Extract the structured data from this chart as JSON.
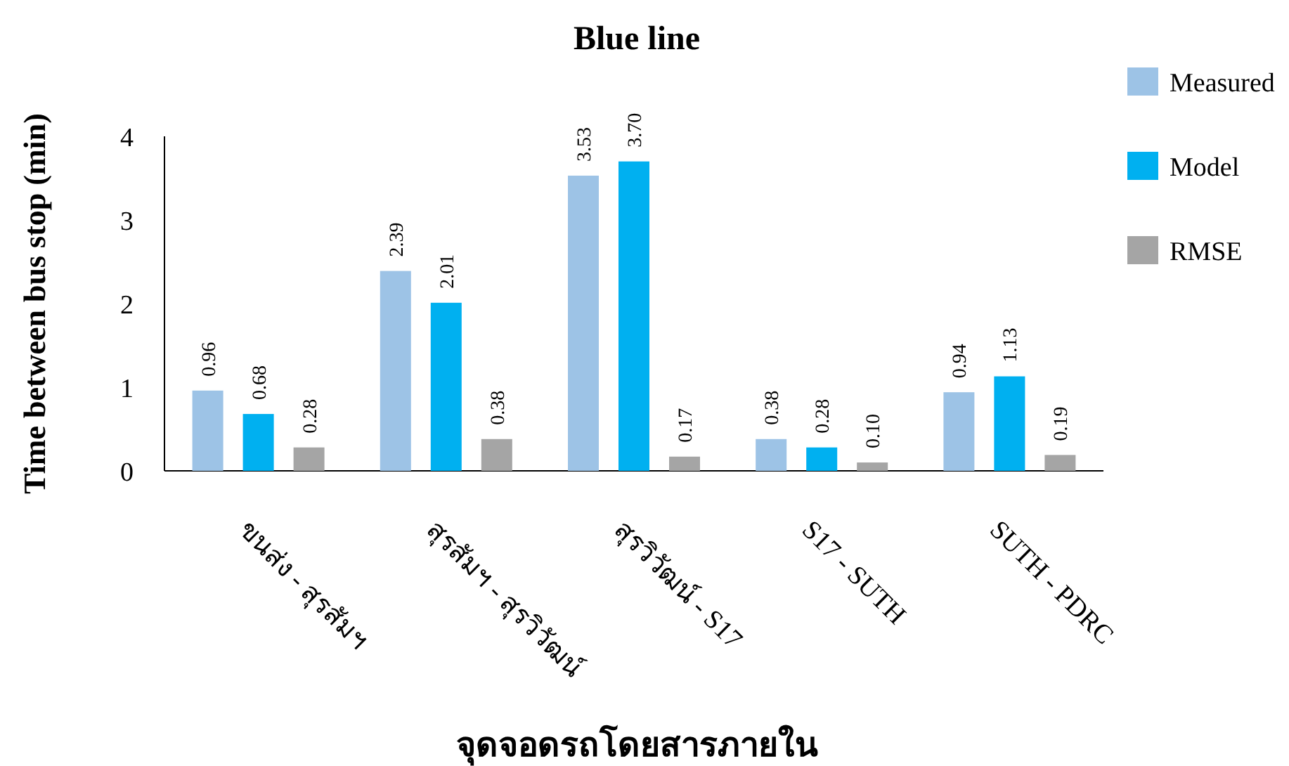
{
  "chart_data": {
    "type": "bar",
    "title": "Blue line",
    "xlabel": "จุดจอดรถโดยสารภายใน",
    "ylabel": "Time between bus stop (min)",
    "categories": [
      "ขนส่ง - สุรสัมฯ",
      "สุรสัมฯ - สุรวิวัฒน์",
      "สุรวิวัฒน์ - S17",
      "S17 - SUTH",
      "SUTH - PDRC"
    ],
    "series": [
      {
        "name": "Measured",
        "color": "#9dc3e6",
        "values": [
          0.96,
          2.39,
          3.53,
          0.38,
          0.94
        ],
        "value_labels": [
          "0.96",
          "2.39",
          "3.53",
          "0.38",
          "0.94"
        ]
      },
      {
        "name": "Model",
        "color": "#00b0f0",
        "values": [
          0.68,
          2.01,
          3.7,
          0.28,
          1.13
        ],
        "value_labels": [
          "0.68",
          "2.01",
          "3.70",
          "0.28",
          "1.13"
        ]
      },
      {
        "name": "RMSE",
        "color": "#a5a5a5",
        "values": [
          0.28,
          0.38,
          0.17,
          0.1,
          0.19
        ],
        "value_labels": [
          "0.28",
          "0.38",
          "0.17",
          "0.10",
          "0.19"
        ]
      }
    ],
    "ylim": [
      0,
      4
    ],
    "yticks": [
      0,
      1,
      2,
      3,
      4
    ],
    "legend": "top right"
  }
}
